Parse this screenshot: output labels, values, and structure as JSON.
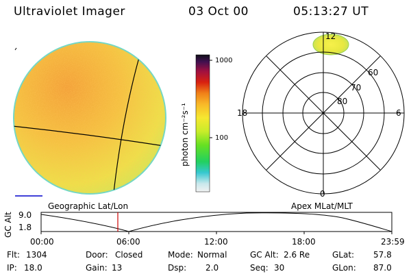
{
  "header": {
    "instrument": "Ultraviolet Imager",
    "date": "03 Oct 00",
    "time": "05:13:27 UT"
  },
  "colorbar": {
    "unit_label": "photon cm⁻²s⁻¹",
    "ticks": [
      "1000",
      "100"
    ]
  },
  "polar_plot": {
    "mlt_labels": [
      "12",
      "18",
      "6",
      "0"
    ],
    "lat_labels": [
      "60",
      "70",
      "80"
    ]
  },
  "panel_labels": {
    "left": "Geographic Lat/Lon",
    "right": "Apex MLat/MLT"
  },
  "altitude_plot": {
    "axis_label": "GC Alt",
    "y_ticks": [
      "9.0",
      "1.8"
    ],
    "x_ticks": [
      "00:00",
      "06:00",
      "12:00",
      "18:00",
      "23:59"
    ],
    "current_time_marker": "05:13"
  },
  "status": {
    "flt_label": "Flt:",
    "flt_value": "1304",
    "ip_label": "IP:",
    "ip_value": "18.0",
    "door_label": "Door:",
    "door_value": "Closed",
    "gain_label": "Gain:",
    "gain_value": "13",
    "mode_label": "Mode:",
    "mode_value": "Normal",
    "dsp_label": "Dsp:",
    "dsp_value": "2.0",
    "gcalt_label": "GC Alt:",
    "gcalt_value": "2.6 Re",
    "seq_label": "Seq:",
    "seq_value": "30",
    "glat_label": "GLat:",
    "glat_value": "57.8",
    "glon_label": "GLon:",
    "glon_value": "87.0"
  },
  "colors": {
    "accent_marker": "#cc0000",
    "scale_bar": "#0000cc"
  }
}
